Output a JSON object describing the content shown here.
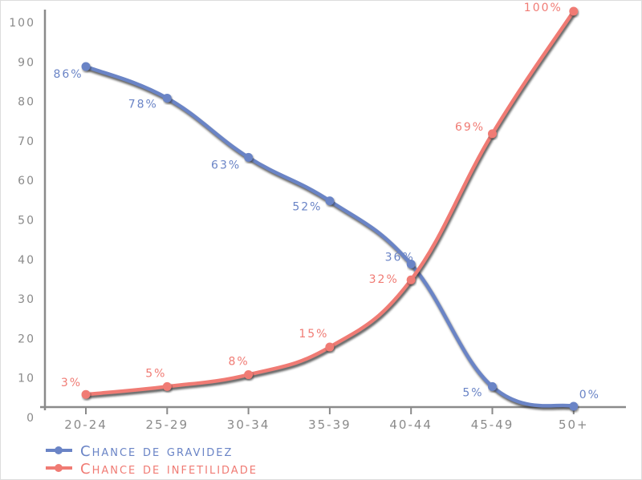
{
  "chart_data": {
    "type": "line",
    "title": "",
    "xlabel": "",
    "ylabel": "",
    "ylim": [
      0,
      100
    ],
    "yticks": [
      0,
      10,
      20,
      30,
      40,
      50,
      60,
      70,
      80,
      90,
      100
    ],
    "categories": [
      "20-24",
      "25-29",
      "30-34",
      "35-39",
      "40-44",
      "45-49",
      "50+"
    ],
    "legend_position": "bottom-left",
    "series": [
      {
        "name": "Chance de gravidez",
        "color": "#6a84c6",
        "values": [
          86,
          78,
          63,
          52,
          36,
          5,
          0
        ],
        "labels": [
          "86%",
          "78%",
          "63%",
          "52%",
          "36%",
          "5%",
          "0%"
        ]
      },
      {
        "name": "Chance de infetilidade",
        "color": "#f07b74",
        "values": [
          3,
          5,
          8,
          15,
          32,
          69,
          100
        ],
        "labels": [
          "3%",
          "5%",
          "8%",
          "15%",
          "32%",
          "69%",
          "100%"
        ]
      }
    ]
  }
}
